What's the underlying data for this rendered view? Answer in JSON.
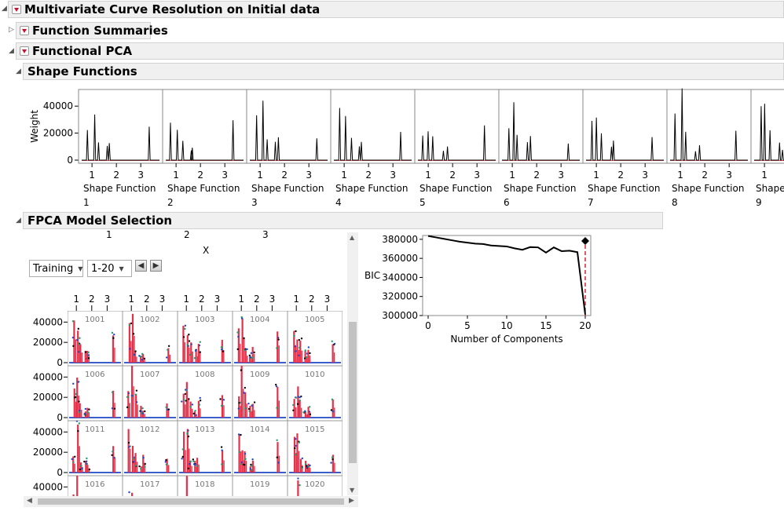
{
  "report": {
    "title": "Multivariate Curve Resolution on Initial data",
    "function_summaries": "Function Summaries",
    "functional_pca": "Functional PCA",
    "shape_functions": "Shape Functions",
    "model_selection": "FPCA Model Selection"
  },
  "shape_panel": {
    "y_label": "Weight",
    "y_ticks": [
      "40000",
      "20000",
      "0"
    ],
    "x_ticks": [
      "1",
      "2",
      "3"
    ],
    "label_prefix": "Shape Function",
    "functions": [
      "1",
      "2",
      "3",
      "4",
      "5",
      "6",
      "7",
      "8",
      "9"
    ]
  },
  "selection": {
    "top_ticks": [
      "1",
      "2",
      "3"
    ],
    "x_label": "X",
    "set_dropdown": "Training",
    "range_dropdown": "1-20"
  },
  "grid": {
    "y_ticks": [
      "40000",
      "20000",
      "0"
    ],
    "x_ticks": [
      "1",
      "2",
      "3"
    ],
    "ids": [
      "1001",
      "1002",
      "1003",
      "1004",
      "1005",
      "1006",
      "1007",
      "1008",
      "1009",
      "1010",
      "1011",
      "1012",
      "1013",
      "1014",
      "1015",
      "1016",
      "1017",
      "1018",
      "1019",
      "1020"
    ]
  },
  "chart_data": {
    "type": "line",
    "title": "",
    "xlabel": "Number of Components",
    "ylabel": "BIC",
    "x": [
      0,
      1,
      2,
      3,
      4,
      5,
      6,
      7,
      8,
      9,
      10,
      11,
      12,
      13,
      14,
      15,
      16,
      17,
      18,
      19,
      20
    ],
    "values": [
      383500,
      382000,
      380500,
      379000,
      377500,
      376500,
      375500,
      375000,
      373500,
      373000,
      372500,
      370500,
      369000,
      371800,
      371500,
      366000,
      371500,
      367500,
      368000,
      366500,
      301000
    ],
    "xlim": [
      0,
      20
    ],
    "ylim": [
      300000,
      384000
    ],
    "x_ticks": [
      0,
      5,
      10,
      15,
      20
    ],
    "y_ticks": [
      300000,
      320000,
      340000,
      360000,
      380000
    ],
    "selected_components": 20,
    "line_color": "#000000",
    "marker_color": "#d62728"
  }
}
